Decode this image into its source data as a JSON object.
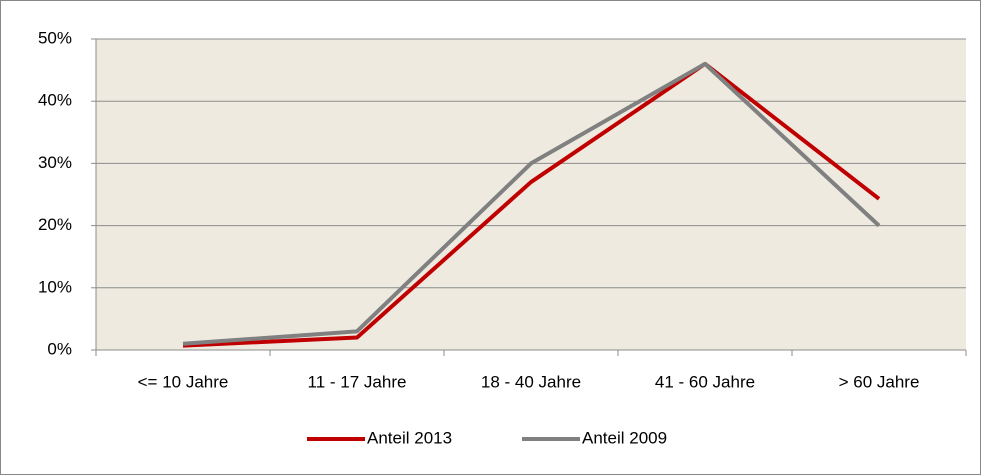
{
  "chart_data": {
    "type": "line",
    "categories": [
      "<= 10 Jahre",
      "11 - 17 Jahre",
      "18 - 40 Jahre",
      "41 - 60 Jahre",
      "> 60 Jahre"
    ],
    "series": [
      {
        "name": "Anteil 2013",
        "color": "#c00000",
        "values": [
          0.7,
          2,
          27,
          46,
          24.3
        ]
      },
      {
        "name": "Anteil 2009",
        "color": "#808080",
        "values": [
          1,
          3,
          30,
          46,
          20
        ]
      }
    ],
    "ylim": [
      0,
      50
    ],
    "yticks": [
      {
        "value": 0,
        "label": "0%"
      },
      {
        "value": 10,
        "label": "10%"
      },
      {
        "value": 20,
        "label": "20%"
      },
      {
        "value": 30,
        "label": "30%"
      },
      {
        "value": 40,
        "label": "40%"
      },
      {
        "value": 50,
        "label": "50%"
      }
    ],
    "grid": true,
    "legend": "bottom"
  }
}
